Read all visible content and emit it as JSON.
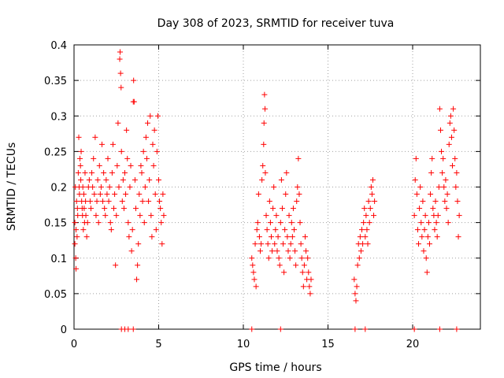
{
  "chart_data": {
    "type": "scatter",
    "title": "Day 308 of 2023, SRMTID for receiver tuva",
    "xlabel": "GPS time / hours",
    "ylabel": "SRMTID / TECUs",
    "xlim": [
      0,
      24
    ],
    "ylim": [
      0,
      0.4
    ],
    "xticks": [
      0,
      5,
      10,
      15,
      20
    ],
    "xtick_labels": [
      "0",
      "5",
      "10",
      "15",
      "20"
    ],
    "yticks": [
      0,
      0.05,
      0.1,
      0.15,
      0.2,
      0.25,
      0.3,
      0.35,
      0.4
    ],
    "ytick_labels": [
      "0",
      "0.05",
      "0.1",
      "0.15",
      "0.2",
      "0.25",
      "0.3",
      "0.35",
      "0.4"
    ],
    "grid": true,
    "marker": "+",
    "marker_color": "#ff0000",
    "series": [
      {
        "name": "SRMTID",
        "points": [
          [
            0.05,
            0.15
          ],
          [
            0.05,
            0.12
          ],
          [
            0.08,
            0.2
          ],
          [
            0.1,
            0.1
          ],
          [
            0.12,
            0.085
          ],
          [
            0.12,
            0.14
          ],
          [
            0.15,
            0.18
          ],
          [
            0.18,
            0.13
          ],
          [
            0.2,
            0.17
          ],
          [
            0.22,
            0.16
          ],
          [
            0.25,
            0.22
          ],
          [
            0.28,
            0.27
          ],
          [
            0.3,
            0.2
          ],
          [
            0.32,
            0.19
          ],
          [
            0.35,
            0.24
          ],
          [
            0.38,
            0.23
          ],
          [
            0.4,
            0.21
          ],
          [
            0.42,
            0.25
          ],
          [
            0.45,
            0.18
          ],
          [
            0.48,
            0.17
          ],
          [
            0.5,
            0.16
          ],
          [
            0.52,
            0.2
          ],
          [
            0.55,
            0.14
          ],
          [
            0.58,
            0.19
          ],
          [
            0.6,
            0.17
          ],
          [
            0.62,
            0.15
          ],
          [
            0.65,
            0.22
          ],
          [
            0.68,
            0.18
          ],
          [
            0.7,
            0.16
          ],
          [
            0.75,
            0.13
          ],
          [
            0.8,
            0.15
          ],
          [
            0.85,
            0.2
          ],
          [
            0.9,
            0.21
          ],
          [
            0.95,
            0.18
          ],
          [
            1.0,
            0.17
          ],
          [
            1.05,
            0.22
          ],
          [
            1.1,
            0.2
          ],
          [
            1.15,
            0.24
          ],
          [
            1.2,
            0.19
          ],
          [
            1.25,
            0.27
          ],
          [
            1.3,
            0.16
          ],
          [
            1.35,
            0.18
          ],
          [
            1.4,
            0.21
          ],
          [
            1.45,
            0.15
          ],
          [
            1.5,
            0.23
          ],
          [
            1.55,
            0.19
          ],
          [
            1.6,
            0.2
          ],
          [
            1.65,
            0.26
          ],
          [
            1.7,
            0.18
          ],
          [
            1.75,
            0.22
          ],
          [
            1.8,
            0.17
          ],
          [
            1.85,
            0.16
          ],
          [
            1.9,
            0.21
          ],
          [
            1.95,
            0.19
          ],
          [
            2.0,
            0.24
          ],
          [
            2.05,
            0.18
          ],
          [
            2.1,
            0.2
          ],
          [
            2.15,
            0.15
          ],
          [
            2.2,
            0.14
          ],
          [
            2.25,
            0.22
          ],
          [
            2.3,
            0.26
          ],
          [
            2.35,
            0.17
          ],
          [
            2.4,
            0.19
          ],
          [
            2.45,
            0.09
          ],
          [
            2.5,
            0.16
          ],
          [
            2.55,
            0.23
          ],
          [
            2.6,
            0.29
          ],
          [
            2.65,
            0.2
          ],
          [
            2.7,
            0.38
          ],
          [
            2.72,
            0.39
          ],
          [
            2.75,
            0.36
          ],
          [
            2.78,
            0.34
          ],
          [
            2.8,
            0.25
          ],
          [
            2.85,
            0.18
          ],
          [
            2.9,
            0.21
          ],
          [
            2.95,
            0.17
          ],
          [
            3.0,
            0.22
          ],
          [
            3.05,
            0.19
          ],
          [
            3.1,
            0.28
          ],
          [
            3.15,
            0.24
          ],
          [
            3.2,
            0.15
          ],
          [
            3.25,
            0.13
          ],
          [
            3.3,
            0.2
          ],
          [
            3.35,
            0.23
          ],
          [
            3.4,
            0.11
          ],
          [
            3.45,
            0.14
          ],
          [
            3.5,
            0.32
          ],
          [
            3.52,
            0.35
          ],
          [
            3.55,
            0.32
          ],
          [
            3.6,
            0.21
          ],
          [
            3.65,
            0.17
          ],
          [
            3.7,
            0.07
          ],
          [
            3.75,
            0.09
          ],
          [
            3.8,
            0.12
          ],
          [
            3.85,
            0.19
          ],
          [
            3.9,
            0.16
          ],
          [
            3.95,
            0.23
          ],
          [
            4.0,
            0.22
          ],
          [
            4.05,
            0.18
          ],
          [
            4.1,
            0.25
          ],
          [
            4.15,
            0.15
          ],
          [
            4.2,
            0.2
          ],
          [
            4.25,
            0.27
          ],
          [
            4.3,
            0.24
          ],
          [
            4.35,
            0.29
          ],
          [
            4.4,
            0.18
          ],
          [
            4.45,
            0.21
          ],
          [
            4.5,
            0.3
          ],
          [
            4.55,
            0.16
          ],
          [
            4.6,
            0.13
          ],
          [
            4.65,
            0.26
          ],
          [
            4.7,
            0.23
          ],
          [
            4.75,
            0.28
          ],
          [
            4.8,
            0.19
          ],
          [
            4.85,
            0.14
          ],
          [
            4.9,
            0.25
          ],
          [
            4.95,
            0.3
          ],
          [
            5.0,
            0.21
          ],
          [
            5.05,
            0.18
          ],
          [
            5.1,
            0.17
          ],
          [
            5.15,
            0.15
          ],
          [
            5.2,
            0.12
          ],
          [
            5.25,
            0.19
          ],
          [
            5.3,
            0.16
          ],
          [
            10.5,
            0.1
          ],
          [
            10.55,
            0.09
          ],
          [
            10.6,
            0.08
          ],
          [
            10.65,
            0.07
          ],
          [
            10.7,
            0.12
          ],
          [
            10.75,
            0.06
          ],
          [
            10.8,
            0.14
          ],
          [
            10.85,
            0.15
          ],
          [
            10.9,
            0.19
          ],
          [
            10.95,
            0.13
          ],
          [
            11.0,
            0.11
          ],
          [
            11.05,
            0.12
          ],
          [
            11.1,
            0.21
          ],
          [
            11.15,
            0.23
          ],
          [
            11.2,
            0.26
          ],
          [
            11.22,
            0.29
          ],
          [
            11.25,
            0.33
          ],
          [
            11.28,
            0.31
          ],
          [
            11.3,
            0.22
          ],
          [
            11.35,
            0.16
          ],
          [
            11.4,
            0.14
          ],
          [
            11.45,
            0.12
          ],
          [
            11.5,
            0.1
          ],
          [
            11.55,
            0.18
          ],
          [
            11.6,
            0.15
          ],
          [
            11.65,
            0.13
          ],
          [
            11.7,
            0.11
          ],
          [
            11.75,
            0.17
          ],
          [
            11.8,
            0.2
          ],
          [
            11.85,
            0.12
          ],
          [
            11.9,
            0.14
          ],
          [
            11.95,
            0.16
          ],
          [
            12.0,
            0.11
          ],
          [
            12.05,
            0.13
          ],
          [
            12.1,
            0.1
          ],
          [
            12.15,
            0.09
          ],
          [
            12.2,
            0.15
          ],
          [
            12.25,
            0.21
          ],
          [
            12.3,
            0.17
          ],
          [
            12.35,
            0.12
          ],
          [
            12.4,
            0.08
          ],
          [
            12.45,
            0.14
          ],
          [
            12.5,
            0.19
          ],
          [
            12.55,
            0.22
          ],
          [
            12.6,
            0.13
          ],
          [
            12.65,
            0.11
          ],
          [
            12.7,
            0.16
          ],
          [
            12.75,
            0.1
          ],
          [
            12.8,
            0.12
          ],
          [
            12.85,
            0.15
          ],
          [
            12.9,
            0.13
          ],
          [
            12.95,
            0.17
          ],
          [
            13.0,
            0.14
          ],
          [
            13.05,
            0.11
          ],
          [
            13.1,
            0.09
          ],
          [
            13.15,
            0.18
          ],
          [
            13.2,
            0.2
          ],
          [
            13.25,
            0.24
          ],
          [
            13.3,
            0.19
          ],
          [
            13.35,
            0.15
          ],
          [
            13.4,
            0.12
          ],
          [
            13.45,
            0.1
          ],
          [
            13.5,
            0.08
          ],
          [
            13.55,
            0.06
          ],
          [
            13.6,
            0.09
          ],
          [
            13.65,
            0.13
          ],
          [
            13.7,
            0.11
          ],
          [
            13.75,
            0.07
          ],
          [
            13.8,
            0.1
          ],
          [
            13.85,
            0.08
          ],
          [
            13.9,
            0.06
          ],
          [
            13.95,
            0.05
          ],
          [
            14.0,
            0.07
          ],
          [
            16.55,
            0.07
          ],
          [
            16.6,
            0.05
          ],
          [
            16.65,
            0.04
          ],
          [
            16.7,
            0.06
          ],
          [
            16.75,
            0.09
          ],
          [
            16.8,
            0.12
          ],
          [
            16.85,
            0.1
          ],
          [
            16.9,
            0.13
          ],
          [
            16.95,
            0.11
          ],
          [
            17.0,
            0.14
          ],
          [
            17.05,
            0.12
          ],
          [
            17.1,
            0.15
          ],
          [
            17.15,
            0.17
          ],
          [
            17.2,
            0.13
          ],
          [
            17.25,
            0.16
          ],
          [
            17.3,
            0.14
          ],
          [
            17.35,
            0.12
          ],
          [
            17.4,
            0.18
          ],
          [
            17.45,
            0.15
          ],
          [
            17.5,
            0.17
          ],
          [
            17.55,
            0.2
          ],
          [
            17.6,
            0.19
          ],
          [
            17.65,
            0.21
          ],
          [
            17.7,
            0.16
          ],
          [
            17.75,
            0.18
          ],
          [
            20.1,
            0.16
          ],
          [
            20.15,
            0.21
          ],
          [
            20.2,
            0.24
          ],
          [
            20.25,
            0.19
          ],
          [
            20.3,
            0.14
          ],
          [
            20.35,
            0.12
          ],
          [
            20.4,
            0.17
          ],
          [
            20.45,
            0.2
          ],
          [
            20.5,
            0.15
          ],
          [
            20.55,
            0.13
          ],
          [
            20.6,
            0.18
          ],
          [
            20.65,
            0.11
          ],
          [
            20.7,
            0.14
          ],
          [
            20.75,
            0.16
          ],
          [
            20.8,
            0.1
          ],
          [
            20.85,
            0.08
          ],
          [
            20.9,
            0.13
          ],
          [
            20.95,
            0.15
          ],
          [
            21.0,
            0.12
          ],
          [
            21.05,
            0.19
          ],
          [
            21.1,
            0.22
          ],
          [
            21.15,
            0.24
          ],
          [
            21.2,
            0.17
          ],
          [
            21.25,
            0.16
          ],
          [
            21.3,
            0.14
          ],
          [
            21.35,
            0.18
          ],
          [
            21.4,
            0.15
          ],
          [
            21.45,
            0.13
          ],
          [
            21.5,
            0.16
          ],
          [
            21.55,
            0.2
          ],
          [
            21.6,
            0.31
          ],
          [
            21.65,
            0.28
          ],
          [
            21.7,
            0.25
          ],
          [
            21.75,
            0.22
          ],
          [
            21.8,
            0.24
          ],
          [
            21.85,
            0.2
          ],
          [
            21.9,
            0.18
          ],
          [
            21.95,
            0.21
          ],
          [
            22.0,
            0.17
          ],
          [
            22.05,
            0.19
          ],
          [
            22.1,
            0.15
          ],
          [
            22.15,
            0.26
          ],
          [
            22.2,
            0.29
          ],
          [
            22.25,
            0.3
          ],
          [
            22.3,
            0.27
          ],
          [
            22.35,
            0.23
          ],
          [
            22.4,
            0.31
          ],
          [
            22.45,
            0.28
          ],
          [
            22.5,
            0.24
          ],
          [
            22.55,
            0.2
          ],
          [
            22.6,
            0.22
          ],
          [
            22.65,
            0.18
          ],
          [
            22.7,
            0.13
          ],
          [
            22.75,
            0.16
          ]
        ],
        "zero_points": [
          2.8,
          3.0,
          3.2,
          3.5,
          10.5,
          12.2,
          16.6,
          17.2,
          20.1,
          21.6,
          22.6
        ]
      }
    ]
  }
}
